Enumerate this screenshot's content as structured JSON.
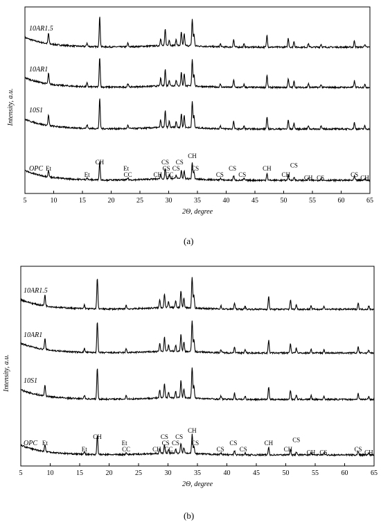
{
  "captions": {
    "a": "(a)",
    "b": "(b)"
  },
  "chart_data": [
    {
      "type": "line",
      "panel": "a",
      "xlabel": "2Θ, degree",
      "ylabel": "Intensity, a.u.",
      "xlim": [
        5,
        65
      ],
      "xticks": [
        5,
        10,
        15,
        20,
        25,
        30,
        35,
        40,
        45,
        50,
        55,
        60,
        65
      ],
      "grid": false,
      "series": [
        {
          "name": "10AR1.5"
        },
        {
          "name": "10AR1"
        },
        {
          "name": "10S1"
        },
        {
          "name": "OPC"
        }
      ],
      "peaks": [
        {
          "x": 9.1,
          "h": 0.35
        },
        {
          "x": 15.8,
          "h": 0.12
        },
        {
          "x": 18.0,
          "h": 1.0
        },
        {
          "x": 22.9,
          "h": 0.12
        },
        {
          "x": 28.6,
          "h": 0.25
        },
        {
          "x": 29.4,
          "h": 0.55
        },
        {
          "x": 30.1,
          "h": 0.2
        },
        {
          "x": 31.3,
          "h": 0.2
        },
        {
          "x": 32.2,
          "h": 0.45
        },
        {
          "x": 32.7,
          "h": 0.4
        },
        {
          "x": 34.1,
          "h": 0.9
        },
        {
          "x": 34.4,
          "h": 0.4
        },
        {
          "x": 39.0,
          "h": 0.1
        },
        {
          "x": 41.3,
          "h": 0.25
        },
        {
          "x": 43.1,
          "h": 0.1
        },
        {
          "x": 47.1,
          "h": 0.4
        },
        {
          "x": 50.8,
          "h": 0.3
        },
        {
          "x": 51.8,
          "h": 0.2
        },
        {
          "x": 54.3,
          "h": 0.12
        },
        {
          "x": 56.5,
          "h": 0.1
        },
        {
          "x": 62.3,
          "h": 0.22
        },
        {
          "x": 64.1,
          "h": 0.1
        }
      ],
      "annotations": [
        {
          "text": "Et",
          "x": 9.1,
          "row": 0
        },
        {
          "text": "Et",
          "x": 15.8,
          "row": 1
        },
        {
          "text": "CH",
          "x": 18.0,
          "row": -1
        },
        {
          "text": "Et",
          "x": 22.6,
          "row": 0
        },
        {
          "text": "CC",
          "x": 22.9,
          "row": 1
        },
        {
          "text": "CH",
          "x": 28.1,
          "row": 1
        },
        {
          "text": "CS",
          "x": 29.4,
          "row": -1
        },
        {
          "text": "CC",
          "x": 30.1,
          "row": 1
        },
        {
          "text": "CS",
          "x": 29.6,
          "row": 0
        },
        {
          "text": "CS",
          "x": 31.3,
          "row": 0
        },
        {
          "text": "CS",
          "x": 31.9,
          "row": -1
        },
        {
          "text": "CH",
          "x": 34.1,
          "row": -2
        },
        {
          "text": "CS",
          "x": 34.6,
          "row": 0
        },
        {
          "text": "CS",
          "x": 38.9,
          "row": 1
        },
        {
          "text": "CS",
          "x": 41.1,
          "row": 0
        },
        {
          "text": "CS",
          "x": 42.8,
          "row": 1
        },
        {
          "text": "CH",
          "x": 47.1,
          "row": 0
        },
        {
          "text": "CH",
          "x": 50.4,
          "row": 1
        },
        {
          "text": "CS",
          "x": 51.8,
          "row": -0.5
        },
        {
          "text": "CH",
          "x": 54.3,
          "row": 1.5
        },
        {
          "text": "CS",
          "x": 56.4,
          "row": 1.5
        },
        {
          "text": "CS",
          "x": 62.3,
          "row": 1
        },
        {
          "text": "CH",
          "x": 64.1,
          "row": 1.5
        }
      ]
    },
    {
      "type": "line",
      "panel": "b",
      "xlabel": "2Θ, degree",
      "ylabel": "Intensity, a.u.",
      "xlim": [
        5,
        65
      ],
      "xticks": [
        5,
        10,
        15,
        20,
        25,
        30,
        35,
        40,
        45,
        50,
        55,
        60,
        65
      ],
      "grid": false,
      "series": [
        {
          "name": "10AR1.5"
        },
        {
          "name": "10AR1"
        },
        {
          "name": "10S1"
        },
        {
          "name": "OPC"
        }
      ],
      "peaks": [
        {
          "x": 9.1,
          "h": 0.35
        },
        {
          "x": 15.8,
          "h": 0.12
        },
        {
          "x": 18.0,
          "h": 1.0
        },
        {
          "x": 22.9,
          "h": 0.12
        },
        {
          "x": 28.6,
          "h": 0.25
        },
        {
          "x": 29.4,
          "h": 0.45
        },
        {
          "x": 30.1,
          "h": 0.2
        },
        {
          "x": 31.3,
          "h": 0.2
        },
        {
          "x": 32.2,
          "h": 0.55
        },
        {
          "x": 32.7,
          "h": 0.3
        },
        {
          "x": 34.1,
          "h": 1.0
        },
        {
          "x": 34.4,
          "h": 0.4
        },
        {
          "x": 39.0,
          "h": 0.1
        },
        {
          "x": 41.3,
          "h": 0.2
        },
        {
          "x": 43.1,
          "h": 0.1
        },
        {
          "x": 47.1,
          "h": 0.4
        },
        {
          "x": 50.8,
          "h": 0.3
        },
        {
          "x": 51.8,
          "h": 0.15
        },
        {
          "x": 54.3,
          "h": 0.12
        },
        {
          "x": 56.5,
          "h": 0.1
        },
        {
          "x": 62.3,
          "h": 0.2
        },
        {
          "x": 64.1,
          "h": 0.1
        }
      ],
      "annotations": [
        {
          "text": "Et",
          "x": 9.1,
          "row": 0
        },
        {
          "text": "Et",
          "x": 15.8,
          "row": 1
        },
        {
          "text": "CH",
          "x": 18.0,
          "row": -1
        },
        {
          "text": "Et",
          "x": 22.6,
          "row": 0
        },
        {
          "text": "CC",
          "x": 22.9,
          "row": 1
        },
        {
          "text": "CH",
          "x": 28.1,
          "row": 1
        },
        {
          "text": "CS",
          "x": 29.4,
          "row": -1
        },
        {
          "text": "CC",
          "x": 30.1,
          "row": 1
        },
        {
          "text": "CS",
          "x": 29.6,
          "row": 0
        },
        {
          "text": "CS",
          "x": 31.3,
          "row": 0
        },
        {
          "text": "CS",
          "x": 31.9,
          "row": -1
        },
        {
          "text": "CH",
          "x": 34.1,
          "row": -2
        },
        {
          "text": "CS",
          "x": 34.6,
          "row": 0
        },
        {
          "text": "CS",
          "x": 38.9,
          "row": 1
        },
        {
          "text": "CS",
          "x": 41.1,
          "row": 0
        },
        {
          "text": "CS",
          "x": 42.8,
          "row": 1
        },
        {
          "text": "CH",
          "x": 47.1,
          "row": 0
        },
        {
          "text": "CH",
          "x": 50.4,
          "row": 1
        },
        {
          "text": "CS",
          "x": 51.8,
          "row": -0.5
        },
        {
          "text": "CH",
          "x": 54.3,
          "row": 1.5
        },
        {
          "text": "CS",
          "x": 56.4,
          "row": 1.5
        },
        {
          "text": "CS",
          "x": 62.3,
          "row": 1
        },
        {
          "text": "CH",
          "x": 64.1,
          "row": 1.5
        }
      ]
    }
  ]
}
